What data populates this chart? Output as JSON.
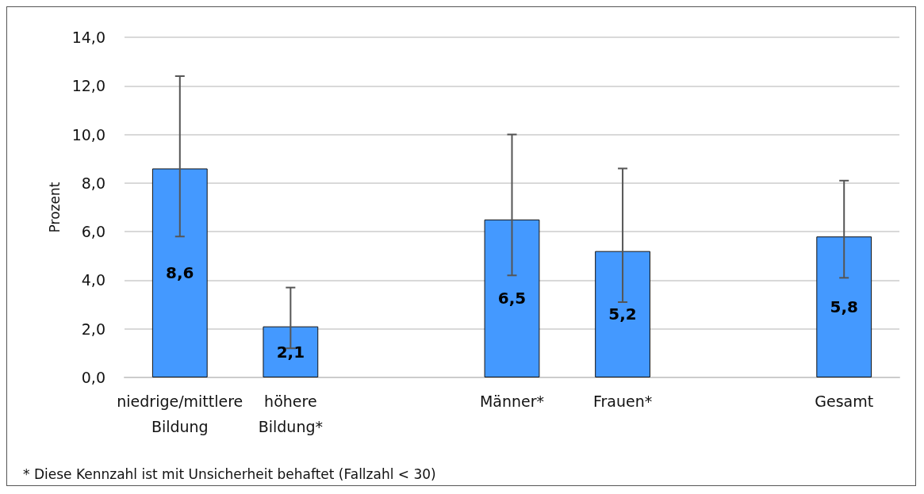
{
  "chart_data": {
    "type": "bar",
    "ylabel": "Prozent",
    "categories": [
      "niedrige/mittlere\nBildung",
      "höhere\nBildung*",
      null,
      "Männer*",
      "Frauen*",
      null,
      "Gesamt"
    ],
    "values": [
      8.6,
      2.1,
      null,
      6.5,
      5.2,
      null,
      5.8
    ],
    "errors": [
      [
        5.8,
        12.4
      ],
      [
        1.2,
        3.7
      ],
      null,
      [
        4.2,
        10.0
      ],
      [
        3.1,
        8.6
      ],
      null,
      [
        4.1,
        8.1
      ]
    ],
    "value_labels": [
      "8,6",
      "2,1",
      null,
      "6,5",
      "5,2",
      null,
      "5,8"
    ],
    "color": "#4499ff",
    "ylim": [
      0,
      14
    ],
    "yticks": [
      {
        "value": 0,
        "label": "0,0"
      },
      {
        "value": 2,
        "label": "2,0"
      },
      {
        "value": 4,
        "label": "4,0"
      },
      {
        "value": 6,
        "label": "6,0"
      },
      {
        "value": 8,
        "label": "8,0"
      },
      {
        "value": 10,
        "label": "10,0"
      },
      {
        "value": 12,
        "label": "12,0"
      },
      {
        "value": 14,
        "label": "14,0"
      }
    ],
    "grid": "y",
    "annotations": [
      "* Diese Kennzahl ist mit Unsicherheit behaftet (Fallzahl < 30)"
    ]
  }
}
